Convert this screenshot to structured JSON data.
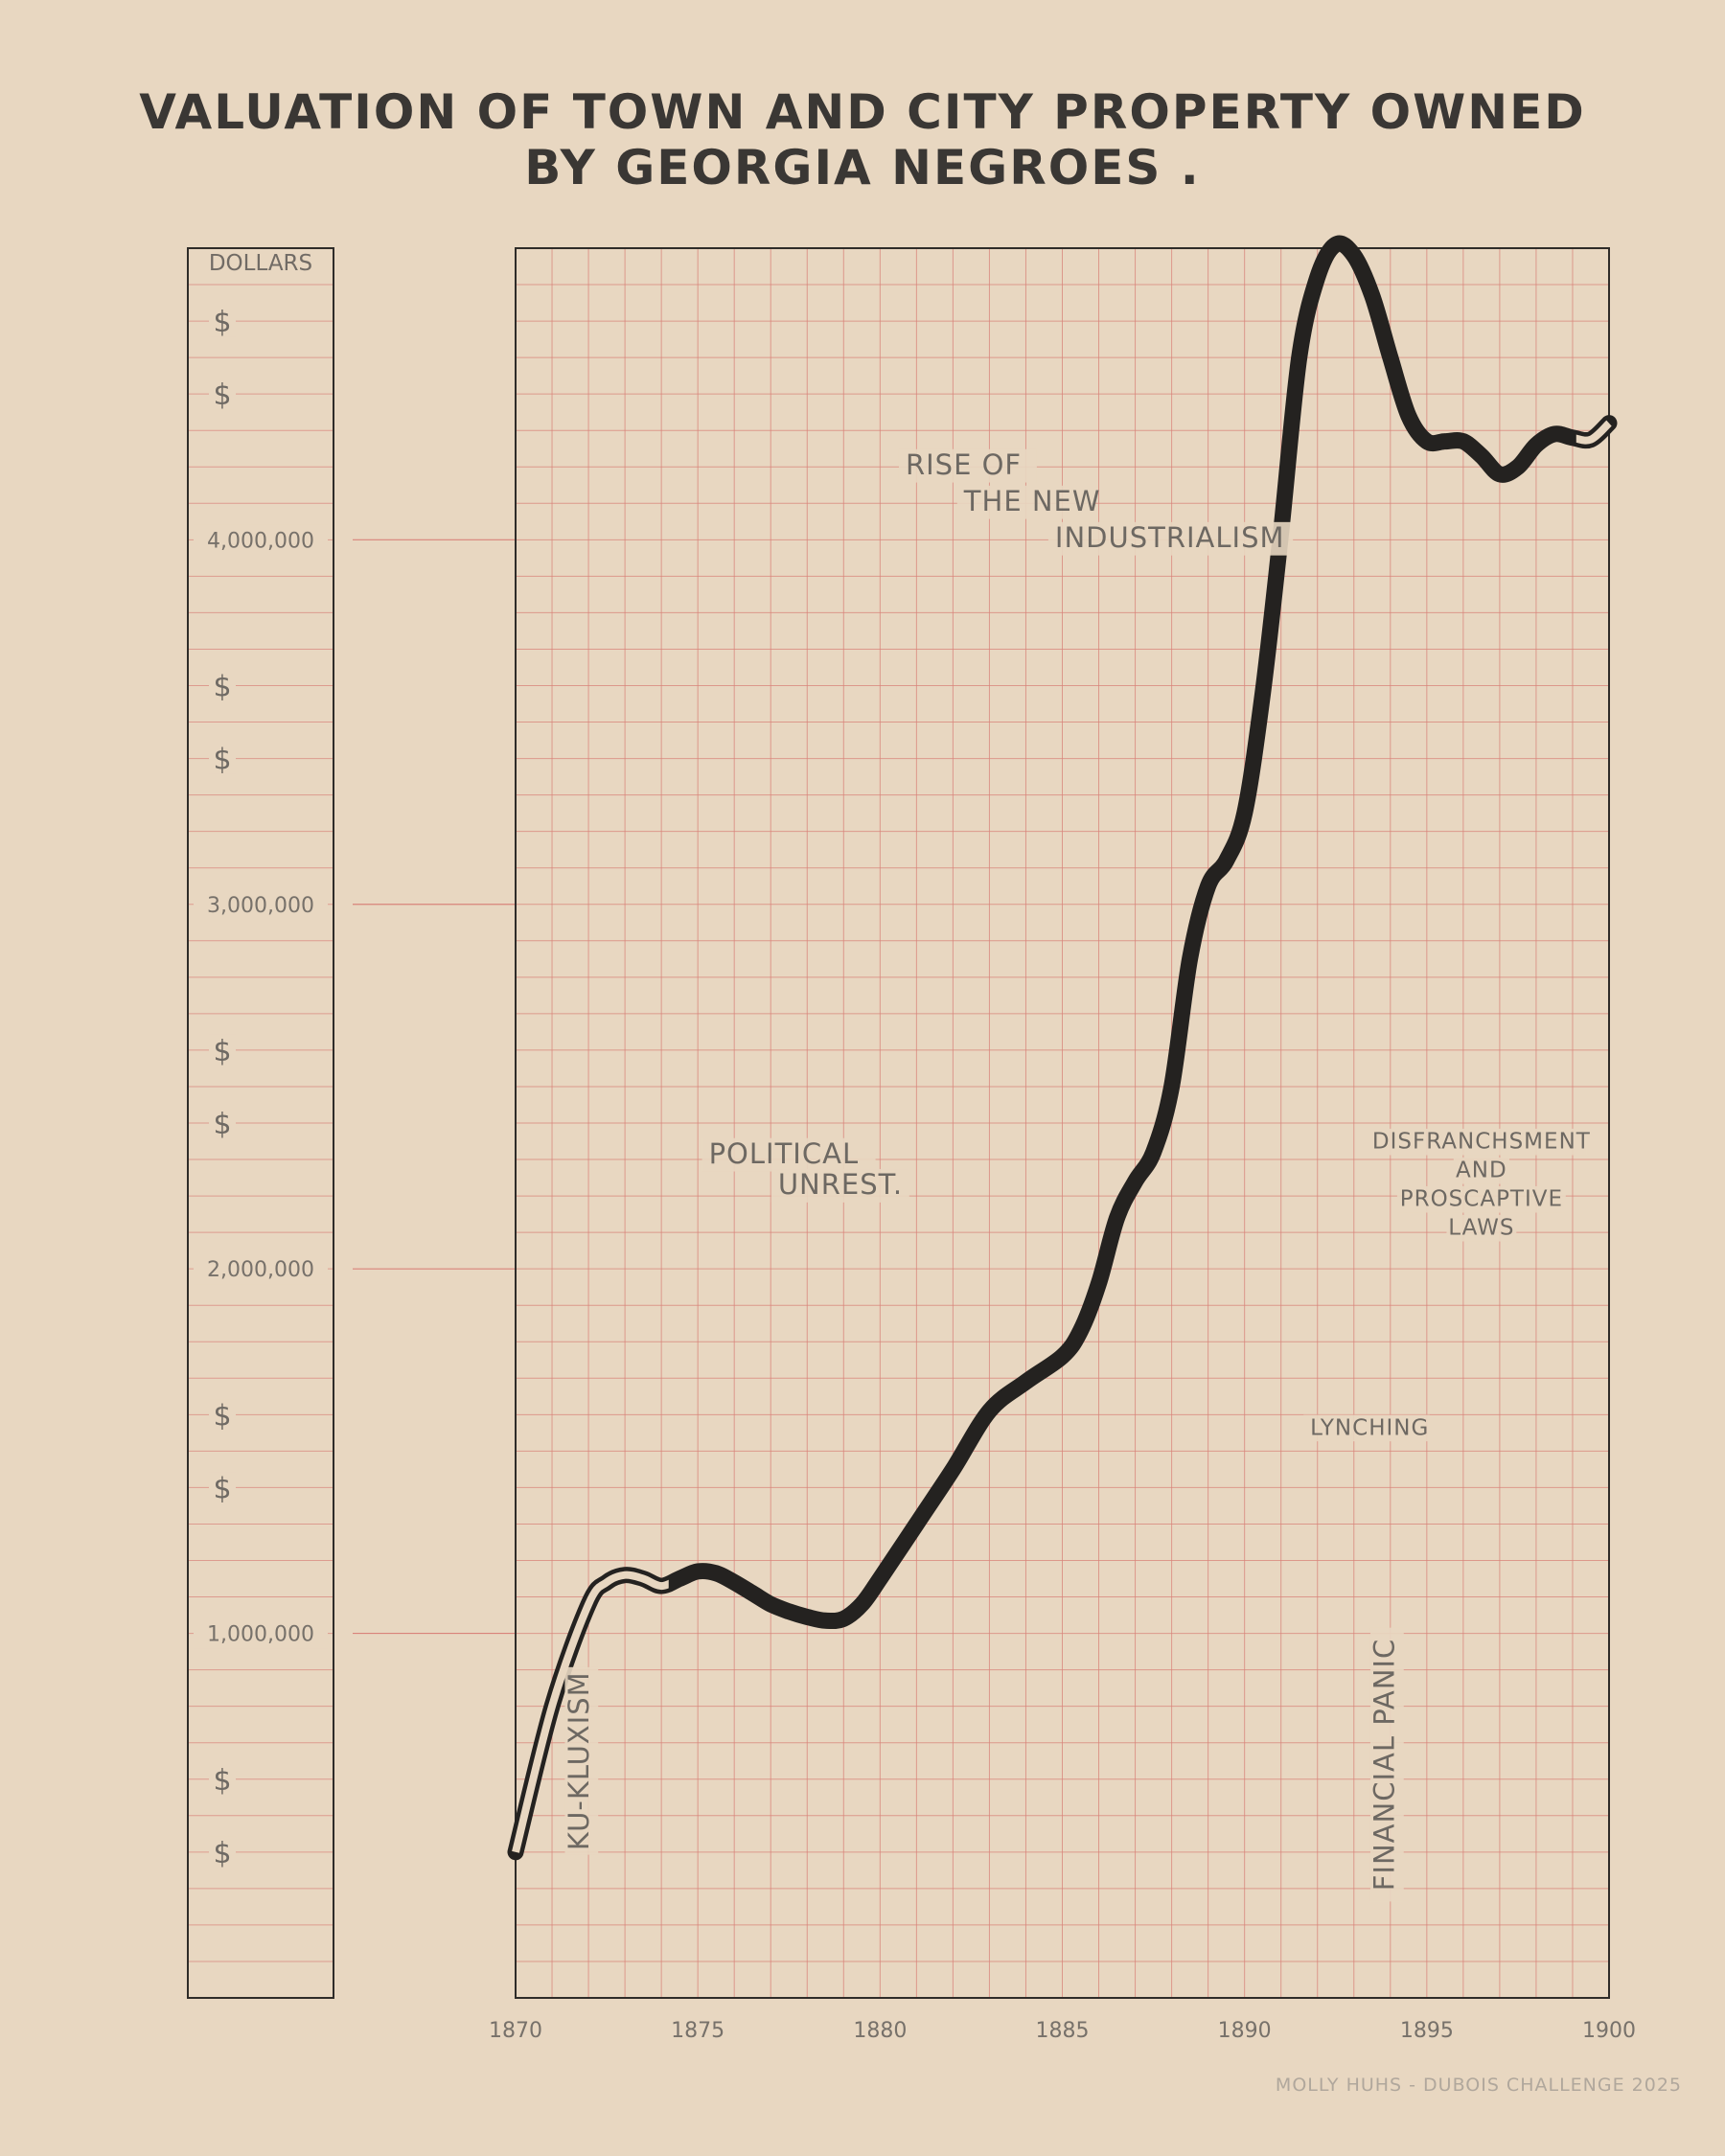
{
  "chart_data": {
    "type": "line",
    "title_line1": "VALUATION OF TOWN AND CITY PROPERTY OWNED",
    "title_line2": "BY GEORGIA NEGROES .",
    "y_axis_label": "DOLLARS",
    "dollar_marker": "$",
    "xlim": [
      1870,
      1900
    ],
    "ylim": [
      0,
      4800000
    ],
    "x_ticks": [
      1870,
      1875,
      1880,
      1885,
      1890,
      1895,
      1900
    ],
    "x_tick_labels": [
      "1870",
      "1875",
      "1880",
      "1885",
      "1890",
      "1895",
      "1900"
    ],
    "y_ticks": [
      1000000,
      2000000,
      3000000,
      4000000
    ],
    "y_tick_labels": [
      "1,000,000",
      "2,000,000",
      "3,000,000",
      "4,000,000"
    ],
    "dollar_positions": [
      400000,
      600000,
      1400000,
      1600000,
      2400000,
      2600000,
      3400000,
      3600000,
      4400000,
      4600000
    ],
    "grid": true,
    "series": [
      {
        "points": [
          [
            1870,
            400000
          ],
          [
            1871,
            800000
          ],
          [
            1872,
            1080000
          ],
          [
            1872.5,
            1140000
          ],
          [
            1873,
            1160000
          ],
          [
            1873.5,
            1150000
          ],
          [
            1874,
            1130000
          ],
          [
            1874.5,
            1150000
          ],
          [
            1875,
            1170000
          ],
          [
            1875.5,
            1165000
          ],
          [
            1876,
            1140000
          ],
          [
            1876.5,
            1110000
          ],
          [
            1877,
            1080000
          ],
          [
            1877.5,
            1060000
          ],
          [
            1878,
            1045000
          ],
          [
            1878.5,
            1035000
          ],
          [
            1879,
            1040000
          ],
          [
            1879.5,
            1080000
          ],
          [
            1880,
            1150000
          ],
          [
            1881,
            1300000
          ],
          [
            1882,
            1450000
          ],
          [
            1883,
            1610000
          ],
          [
            1884,
            1690000
          ],
          [
            1885,
            1760000
          ],
          [
            1885.5,
            1830000
          ],
          [
            1886,
            1960000
          ],
          [
            1886.5,
            2140000
          ],
          [
            1887,
            2240000
          ],
          [
            1887.5,
            2320000
          ],
          [
            1888,
            2500000
          ],
          [
            1888.5,
            2850000
          ],
          [
            1889,
            3050000
          ],
          [
            1889.5,
            3120000
          ],
          [
            1890,
            3250000
          ],
          [
            1890.5,
            3580000
          ],
          [
            1891,
            4020000
          ],
          [
            1891.5,
            4500000
          ],
          [
            1892,
            4720000
          ],
          [
            1892.5,
            4810000
          ],
          [
            1893,
            4780000
          ],
          [
            1893.5,
            4670000
          ],
          [
            1894,
            4500000
          ],
          [
            1894.5,
            4340000
          ],
          [
            1895,
            4270000
          ],
          [
            1895.5,
            4270000
          ],
          [
            1896,
            4270000
          ],
          [
            1896.5,
            4230000
          ],
          [
            1897,
            4180000
          ],
          [
            1897.5,
            4200000
          ],
          [
            1898,
            4260000
          ],
          [
            1898.5,
            4290000
          ],
          [
            1899,
            4280000
          ],
          [
            1899.5,
            4275000
          ],
          [
            1900,
            4320000
          ]
        ]
      }
    ],
    "annotations": [
      {
        "lines": [
          "KU-KLUXISM"
        ],
        "x": 1872,
        "y": 650000,
        "rotate": true,
        "size": "large"
      },
      {
        "lines": [
          "POLITICAL"
        ],
        "x": 1875.3,
        "y": 2290000,
        "size": "large"
      },
      {
        "lines": [
          "UNREST."
        ],
        "x": 1877.2,
        "y": 2205000,
        "size": "large"
      },
      {
        "lines": [
          "RISE OF"
        ],
        "x": 1880.7,
        "y": 4180000,
        "size": "large"
      },
      {
        "lines": [
          "THE NEW"
        ],
        "x": 1882.3,
        "y": 4080000,
        "size": "large"
      },
      {
        "lines": [
          "INDUSTRIALISM"
        ],
        "x": 1884.8,
        "y": 3980000,
        "size": "large"
      },
      {
        "lines": [
          "LYNCHING"
        ],
        "x": 1891.8,
        "y": 1545000,
        "size": "small"
      },
      {
        "lines": [
          "FINANCIAL PANIC"
        ],
        "x": 1894.1,
        "y": 640000,
        "rotate": true,
        "size": "large"
      },
      {
        "lines": [
          "DISFRANCHSMENT",
          "AND",
          "PROSCAPTIVE",
          "LAWS"
        ],
        "x": 1896.5,
        "y": 2330000,
        "size": "small"
      }
    ]
  },
  "credit": "MOLLY HUHS - DUBOIS CHALLENGE 2025"
}
